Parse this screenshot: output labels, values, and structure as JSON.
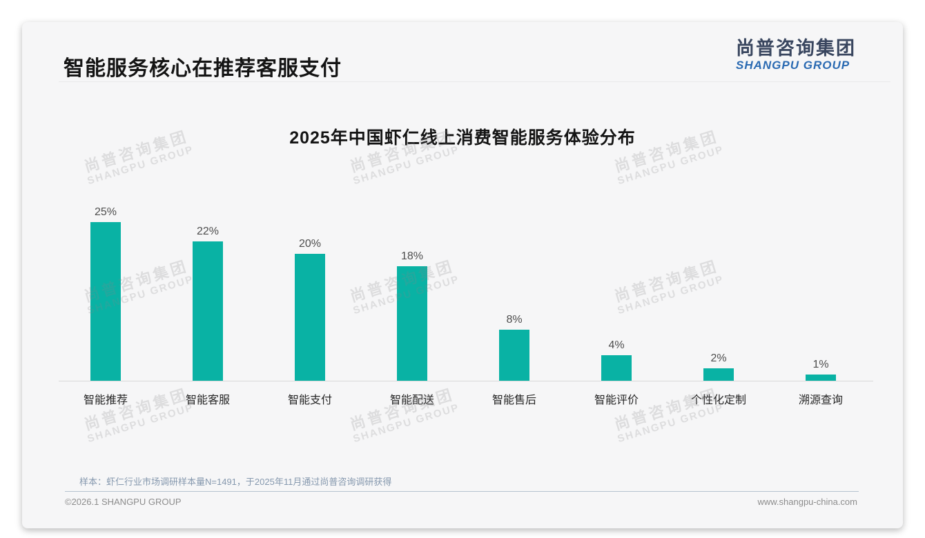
{
  "page": {
    "title": "智能服务核心在推荐客服支付",
    "logo": {
      "cn": "尚普咨询集团",
      "en": "SHANGPU GROUP"
    },
    "watermark": {
      "cn": "尚普咨询集团",
      "en": "SHANGPU GROUP"
    },
    "note": "样本：虾仁行业市场调研样本量N=1491，于2025年11月通过尚普咨询调研获得",
    "footer_left": "©2026.1 SHANGPU GROUP",
    "footer_right": "www.shangpu-china.com"
  },
  "colors": {
    "bar": "#09b2a4",
    "logo_cn": "#39465f",
    "logo_en": "#2a6ab2",
    "note_text": "#8598ae"
  },
  "chart_data": {
    "type": "bar",
    "title": "2025年中国虾仁线上消费智能服务体验分布",
    "categories": [
      "智能推荐",
      "智能客服",
      "智能支付",
      "智能配送",
      "智能售后",
      "智能评价",
      "个性化定制",
      "溯源查询"
    ],
    "values": [
      25,
      22,
      20,
      18,
      8,
      4,
      2,
      1
    ],
    "labels": [
      "25%",
      "22%",
      "20%",
      "18%",
      "8%",
      "4%",
      "2%",
      "1%"
    ],
    "unit": "%",
    "xlabel": "",
    "ylabel": "",
    "ylim": [
      0,
      27
    ],
    "grid": false,
    "legend": "none",
    "bar_color": "#09b2a4"
  }
}
